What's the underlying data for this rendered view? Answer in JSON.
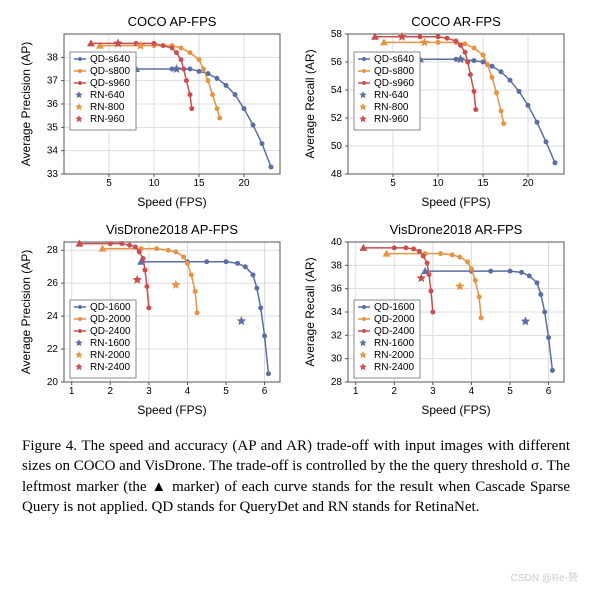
{
  "colors": {
    "bg": "#ffffff",
    "grid": "#dcdcdc",
    "border": "#555555",
    "s1": "#5b6ea3",
    "s2": "#e79344",
    "s3": "#c94f4f"
  },
  "watermark": "CSDN @Re-赟",
  "caption": "Figure 4.  The speed and accuracy (AP and AR) trade-off with input images with different sizes on COCO and VisDrone. The trade-off is controlled by the the query threshold σ. The leftmost marker (the ▲ marker) of each curve stands for the result when Cascade Sparse Query is not applied. QD stands for QueryDet and RN stands for RetinaNet.",
  "charts": [
    {
      "title": "COCO AP-FPS",
      "xlabel": "Speed (FPS)",
      "ylabel": "Average Precision (AP)",
      "xlim": [
        0,
        24
      ],
      "ylim": [
        33,
        39
      ],
      "xticks": [
        5,
        10,
        15,
        20
      ],
      "yticks": [
        33,
        34,
        35,
        36,
        37,
        38
      ],
      "legend_pos": "ul",
      "series": [
        {
          "name": "QD-s640",
          "color": "s1",
          "marker": "o",
          "first": "tri",
          "data": [
            [
              8,
              37.5
            ],
            [
              12,
              37.5
            ],
            [
              14,
              37.5
            ],
            [
              15,
              37.4
            ],
            [
              16,
              37.3
            ],
            [
              17,
              37.1
            ],
            [
              18,
              36.8
            ],
            [
              19,
              36.4
            ],
            [
              20,
              35.8
            ],
            [
              21,
              35.1
            ],
            [
              22,
              34.3
            ],
            [
              23,
              33.3
            ]
          ]
        },
        {
          "name": "QD-s800",
          "color": "s2",
          "marker": "o",
          "first": "tri",
          "data": [
            [
              4,
              38.5
            ],
            [
              10,
              38.5
            ],
            [
              12,
              38.5
            ],
            [
              13,
              38.4
            ],
            [
              14,
              38.2
            ],
            [
              15,
              37.9
            ],
            [
              15.5,
              37.5
            ],
            [
              16,
              37.0
            ],
            [
              16.5,
              36.4
            ],
            [
              17,
              35.8
            ],
            [
              17.3,
              35.4
            ]
          ]
        },
        {
          "name": "QD-s960",
          "color": "s3",
          "marker": "o",
          "first": "tri",
          "data": [
            [
              3,
              38.6
            ],
            [
              8,
              38.6
            ],
            [
              10,
              38.6
            ],
            [
              11,
              38.5
            ],
            [
              12,
              38.4
            ],
            [
              12.5,
              38.2
            ],
            [
              13,
              37.9
            ],
            [
              13.3,
              37.5
            ],
            [
              13.6,
              37.0
            ],
            [
              14,
              36.4
            ],
            [
              14.2,
              35.8
            ]
          ]
        },
        {
          "name": "RN-640",
          "color": "s1",
          "marker": "star",
          "data": [
            [
              12.5,
              37.5
            ]
          ]
        },
        {
          "name": "RN-800",
          "color": "s2",
          "marker": "star",
          "data": [
            [
              8.5,
              38.5
            ]
          ]
        },
        {
          "name": "RN-960",
          "color": "s3",
          "marker": "star",
          "data": [
            [
              6,
              38.6
            ]
          ]
        }
      ]
    },
    {
      "title": "COCO AR-FPS",
      "xlabel": "Speed (FPS)",
      "ylabel": "Average Recall (AR)",
      "xlim": [
        0,
        24
      ],
      "ylim": [
        48,
        58
      ],
      "xticks": [
        5,
        10,
        15,
        20
      ],
      "yticks": [
        48,
        50,
        52,
        54,
        56,
        58
      ],
      "legend_pos": "ul",
      "series": [
        {
          "name": "QD-s640",
          "color": "s1",
          "marker": "o",
          "first": "tri",
          "data": [
            [
              8,
              56.2
            ],
            [
              12,
              56.2
            ],
            [
              14,
              56.1
            ],
            [
              15,
              56.0
            ],
            [
              16,
              55.7
            ],
            [
              17,
              55.3
            ],
            [
              18,
              54.7
            ],
            [
              19,
              53.9
            ],
            [
              20,
              52.9
            ],
            [
              21,
              51.7
            ],
            [
              22,
              50.3
            ],
            [
              23,
              48.8
            ]
          ]
        },
        {
          "name": "QD-s800",
          "color": "s2",
          "marker": "o",
          "first": "tri",
          "data": [
            [
              4,
              57.4
            ],
            [
              10,
              57.4
            ],
            [
              12,
              57.4
            ],
            [
              13,
              57.3
            ],
            [
              14,
              57.0
            ],
            [
              15,
              56.5
            ],
            [
              15.5,
              55.8
            ],
            [
              16,
              54.9
            ],
            [
              16.5,
              53.8
            ],
            [
              17,
              52.5
            ],
            [
              17.3,
              51.6
            ]
          ]
        },
        {
          "name": "QD-s960",
          "color": "s3",
          "marker": "o",
          "first": "tri",
          "data": [
            [
              3,
              57.8
            ],
            [
              8,
              57.8
            ],
            [
              10,
              57.8
            ],
            [
              11,
              57.7
            ],
            [
              12,
              57.5
            ],
            [
              12.5,
              57.2
            ],
            [
              13,
              56.7
            ],
            [
              13.3,
              56.0
            ],
            [
              13.6,
              55.1
            ],
            [
              14,
              53.9
            ],
            [
              14.2,
              52.6
            ]
          ]
        },
        {
          "name": "RN-640",
          "color": "s1",
          "marker": "star",
          "data": [
            [
              12.5,
              56.2
            ]
          ]
        },
        {
          "name": "RN-800",
          "color": "s2",
          "marker": "star",
          "data": [
            [
              8.5,
              57.4
            ]
          ]
        },
        {
          "name": "RN-960",
          "color": "s3",
          "marker": "star",
          "data": [
            [
              6,
              57.8
            ]
          ]
        }
      ]
    },
    {
      "title": "VisDrone2018 AP-FPS",
      "xlabel": "Speed (FPS)",
      "ylabel": "Average Precision (AP)",
      "xlim": [
        0.8,
        6.4
      ],
      "ylim": [
        20,
        28.5
      ],
      "xticks": [
        1,
        2,
        3,
        4,
        5,
        6
      ],
      "yticks": [
        20,
        22,
        24,
        26,
        28
      ],
      "legend_pos": "ll",
      "series": [
        {
          "name": "QD-1600",
          "color": "s1",
          "marker": "o",
          "first": "tri",
          "data": [
            [
              2.8,
              27.3
            ],
            [
              4.0,
              27.3
            ],
            [
              4.5,
              27.3
            ],
            [
              5.0,
              27.3
            ],
            [
              5.3,
              27.2
            ],
            [
              5.5,
              27.0
            ],
            [
              5.7,
              26.5
            ],
            [
              5.8,
              25.7
            ],
            [
              5.9,
              24.5
            ],
            [
              6.0,
              22.8
            ],
            [
              6.1,
              20.5
            ]
          ]
        },
        {
          "name": "QD-2000",
          "color": "s2",
          "marker": "o",
          "first": "tri",
          "data": [
            [
              1.8,
              28.1
            ],
            [
              2.8,
              28.1
            ],
            [
              3.2,
              28.1
            ],
            [
              3.5,
              28.0
            ],
            [
              3.7,
              27.9
            ],
            [
              3.9,
              27.6
            ],
            [
              4.0,
              27.2
            ],
            [
              4.1,
              26.5
            ],
            [
              4.2,
              25.5
            ],
            [
              4.25,
              24.2
            ]
          ]
        },
        {
          "name": "QD-2400",
          "color": "s3",
          "marker": "o",
          "first": "tri",
          "data": [
            [
              1.2,
              28.4
            ],
            [
              2.0,
              28.4
            ],
            [
              2.3,
              28.4
            ],
            [
              2.5,
              28.3
            ],
            [
              2.65,
              28.2
            ],
            [
              2.75,
              27.9
            ],
            [
              2.85,
              27.5
            ],
            [
              2.9,
              26.8
            ],
            [
              2.95,
              25.8
            ],
            [
              3.0,
              24.5
            ]
          ]
        },
        {
          "name": "RN-1600",
          "color": "s1",
          "marker": "star",
          "data": [
            [
              5.4,
              23.7
            ]
          ]
        },
        {
          "name": "RN-2000",
          "color": "s2",
          "marker": "star",
          "data": [
            [
              3.7,
              25.9
            ]
          ]
        },
        {
          "name": "RN-2400",
          "color": "s3",
          "marker": "star",
          "data": [
            [
              2.7,
              26.2
            ]
          ]
        }
      ]
    },
    {
      "title": "VisDrone2018 AR-FPS",
      "xlabel": "Speed (FPS)",
      "ylabel": "Average Recall (AR)",
      "xlim": [
        0.8,
        6.4
      ],
      "ylim": [
        28,
        40
      ],
      "xticks": [
        1,
        2,
        3,
        4,
        5,
        6
      ],
      "yticks": [
        28,
        30,
        32,
        34,
        36,
        38,
        40
      ],
      "legend_pos": "ll",
      "series": [
        {
          "name": "QD-1600",
          "color": "s1",
          "marker": "o",
          "first": "tri",
          "data": [
            [
              2.8,
              37.5
            ],
            [
              4.0,
              37.5
            ],
            [
              4.5,
              37.5
            ],
            [
              5.0,
              37.5
            ],
            [
              5.3,
              37.4
            ],
            [
              5.5,
              37.1
            ],
            [
              5.7,
              36.5
            ],
            [
              5.8,
              35.5
            ],
            [
              5.9,
              34.0
            ],
            [
              6.0,
              31.8
            ],
            [
              6.1,
              29.0
            ]
          ]
        },
        {
          "name": "QD-2000",
          "color": "s2",
          "marker": "o",
          "first": "tri",
          "data": [
            [
              1.8,
              39.0
            ],
            [
              2.8,
              39.0
            ],
            [
              3.2,
              39.0
            ],
            [
              3.5,
              38.9
            ],
            [
              3.7,
              38.7
            ],
            [
              3.9,
              38.3
            ],
            [
              4.0,
              37.7
            ],
            [
              4.1,
              36.7
            ],
            [
              4.2,
              35.3
            ],
            [
              4.25,
              33.5
            ]
          ]
        },
        {
          "name": "QD-2400",
          "color": "s3",
          "marker": "o",
          "first": "tri",
          "data": [
            [
              1.2,
              39.5
            ],
            [
              2.0,
              39.5
            ],
            [
              2.3,
              39.5
            ],
            [
              2.5,
              39.4
            ],
            [
              2.65,
              39.2
            ],
            [
              2.75,
              38.8
            ],
            [
              2.85,
              38.2
            ],
            [
              2.9,
              37.2
            ],
            [
              2.95,
              35.8
            ],
            [
              3.0,
              34.0
            ]
          ]
        },
        {
          "name": "RN-1600",
          "color": "s1",
          "marker": "star",
          "data": [
            [
              5.4,
              33.2
            ]
          ]
        },
        {
          "name": "RN-2000",
          "color": "s2",
          "marker": "star",
          "data": [
            [
              3.7,
              36.2
            ]
          ]
        },
        {
          "name": "RN-2400",
          "color": "s3",
          "marker": "star",
          "data": [
            [
              2.7,
              36.9
            ]
          ]
        }
      ]
    }
  ]
}
